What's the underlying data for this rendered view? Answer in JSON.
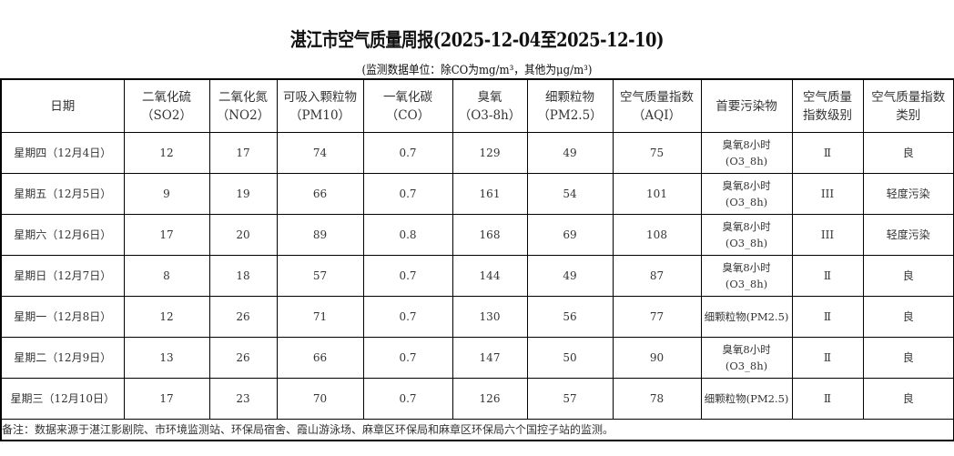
{
  "title": "湛江市空气质量周报(2025-12-04至2025-12-10)",
  "subtitle": "(监测数据单位：除CO为mg/m³，其他为μg/m³)",
  "headers": [
    {
      "l1": "日期",
      "l2": ""
    },
    {
      "l1": "二氧化硫",
      "l2": "（SO2）"
    },
    {
      "l1": "二氧化氮",
      "l2": "（NO2）"
    },
    {
      "l1": "可吸入颗粒物",
      "l2": "（PM10）"
    },
    {
      "l1": "一氧化碳",
      "l2": "（CO）"
    },
    {
      "l1": "臭氧",
      "l2": "（O3-8h）"
    },
    {
      "l1": "细颗粒物",
      "l2": "（PM2.5）"
    },
    {
      "l1": "空气质量指数",
      "l2": "（AQI）"
    },
    {
      "l1": "首要污染物",
      "l2": ""
    },
    {
      "l1": "空气质量",
      "l2": "指数级别"
    },
    {
      "l1": "空气质量指数",
      "l2": "类别"
    }
  ],
  "rows": [
    {
      "date": "星期四（12月4日）",
      "so2": "12",
      "no2": "17",
      "pm10": "74",
      "co": "0.7",
      "o3": "129",
      "pm25": "49",
      "aqi": "75",
      "p1": "臭氧8小时",
      "p2": "(O3_8h)",
      "level": "Ⅱ",
      "cat": "良"
    },
    {
      "date": "星期五（12月5日）",
      "so2": "9",
      "no2": "19",
      "pm10": "66",
      "co": "0.7",
      "o3": "161",
      "pm25": "54",
      "aqi": "101",
      "p1": "臭氧8小时",
      "p2": "(O3_8h)",
      "level": "III",
      "cat": "轻度污染"
    },
    {
      "date": "星期六（12月6日）",
      "so2": "17",
      "no2": "20",
      "pm10": "89",
      "co": "0.8",
      "o3": "168",
      "pm25": "69",
      "aqi": "108",
      "p1": "臭氧8小时",
      "p2": "(O3_8h)",
      "level": "III",
      "cat": "轻度污染"
    },
    {
      "date": "星期日（12月7日）",
      "so2": "8",
      "no2": "18",
      "pm10": "57",
      "co": "0.7",
      "o3": "144",
      "pm25": "49",
      "aqi": "87",
      "p1": "臭氧8小时",
      "p2": "(O3_8h)",
      "level": "Ⅱ",
      "cat": "良"
    },
    {
      "date": "星期一（12月8日）",
      "so2": "12",
      "no2": "26",
      "pm10": "71",
      "co": "0.7",
      "o3": "130",
      "pm25": "56",
      "aqi": "77",
      "p1": "细颗粒物(PM2.5)",
      "p2": "",
      "level": "Ⅱ",
      "cat": "良"
    },
    {
      "date": "星期二（12月9日）",
      "so2": "13",
      "no2": "26",
      "pm10": "66",
      "co": "0.7",
      "o3": "147",
      "pm25": "50",
      "aqi": "90",
      "p1": "臭氧8小时",
      "p2": "(O3_8h)",
      "level": "Ⅱ",
      "cat": "良"
    },
    {
      "date": "星期三（12月10日）",
      "so2": "17",
      "no2": "23",
      "pm10": "70",
      "co": "0.7",
      "o3": "126",
      "pm25": "57",
      "aqi": "78",
      "p1": "细颗粒物(PM2.5)",
      "p2": "",
      "level": "Ⅱ",
      "cat": "良"
    }
  ],
  "note": "备注：数据来源于湛江影剧院、市环境监测站、环保局宿舍、霞山游泳场、麻章区环保局和麻章区环保局六个国控子站的监测。"
}
